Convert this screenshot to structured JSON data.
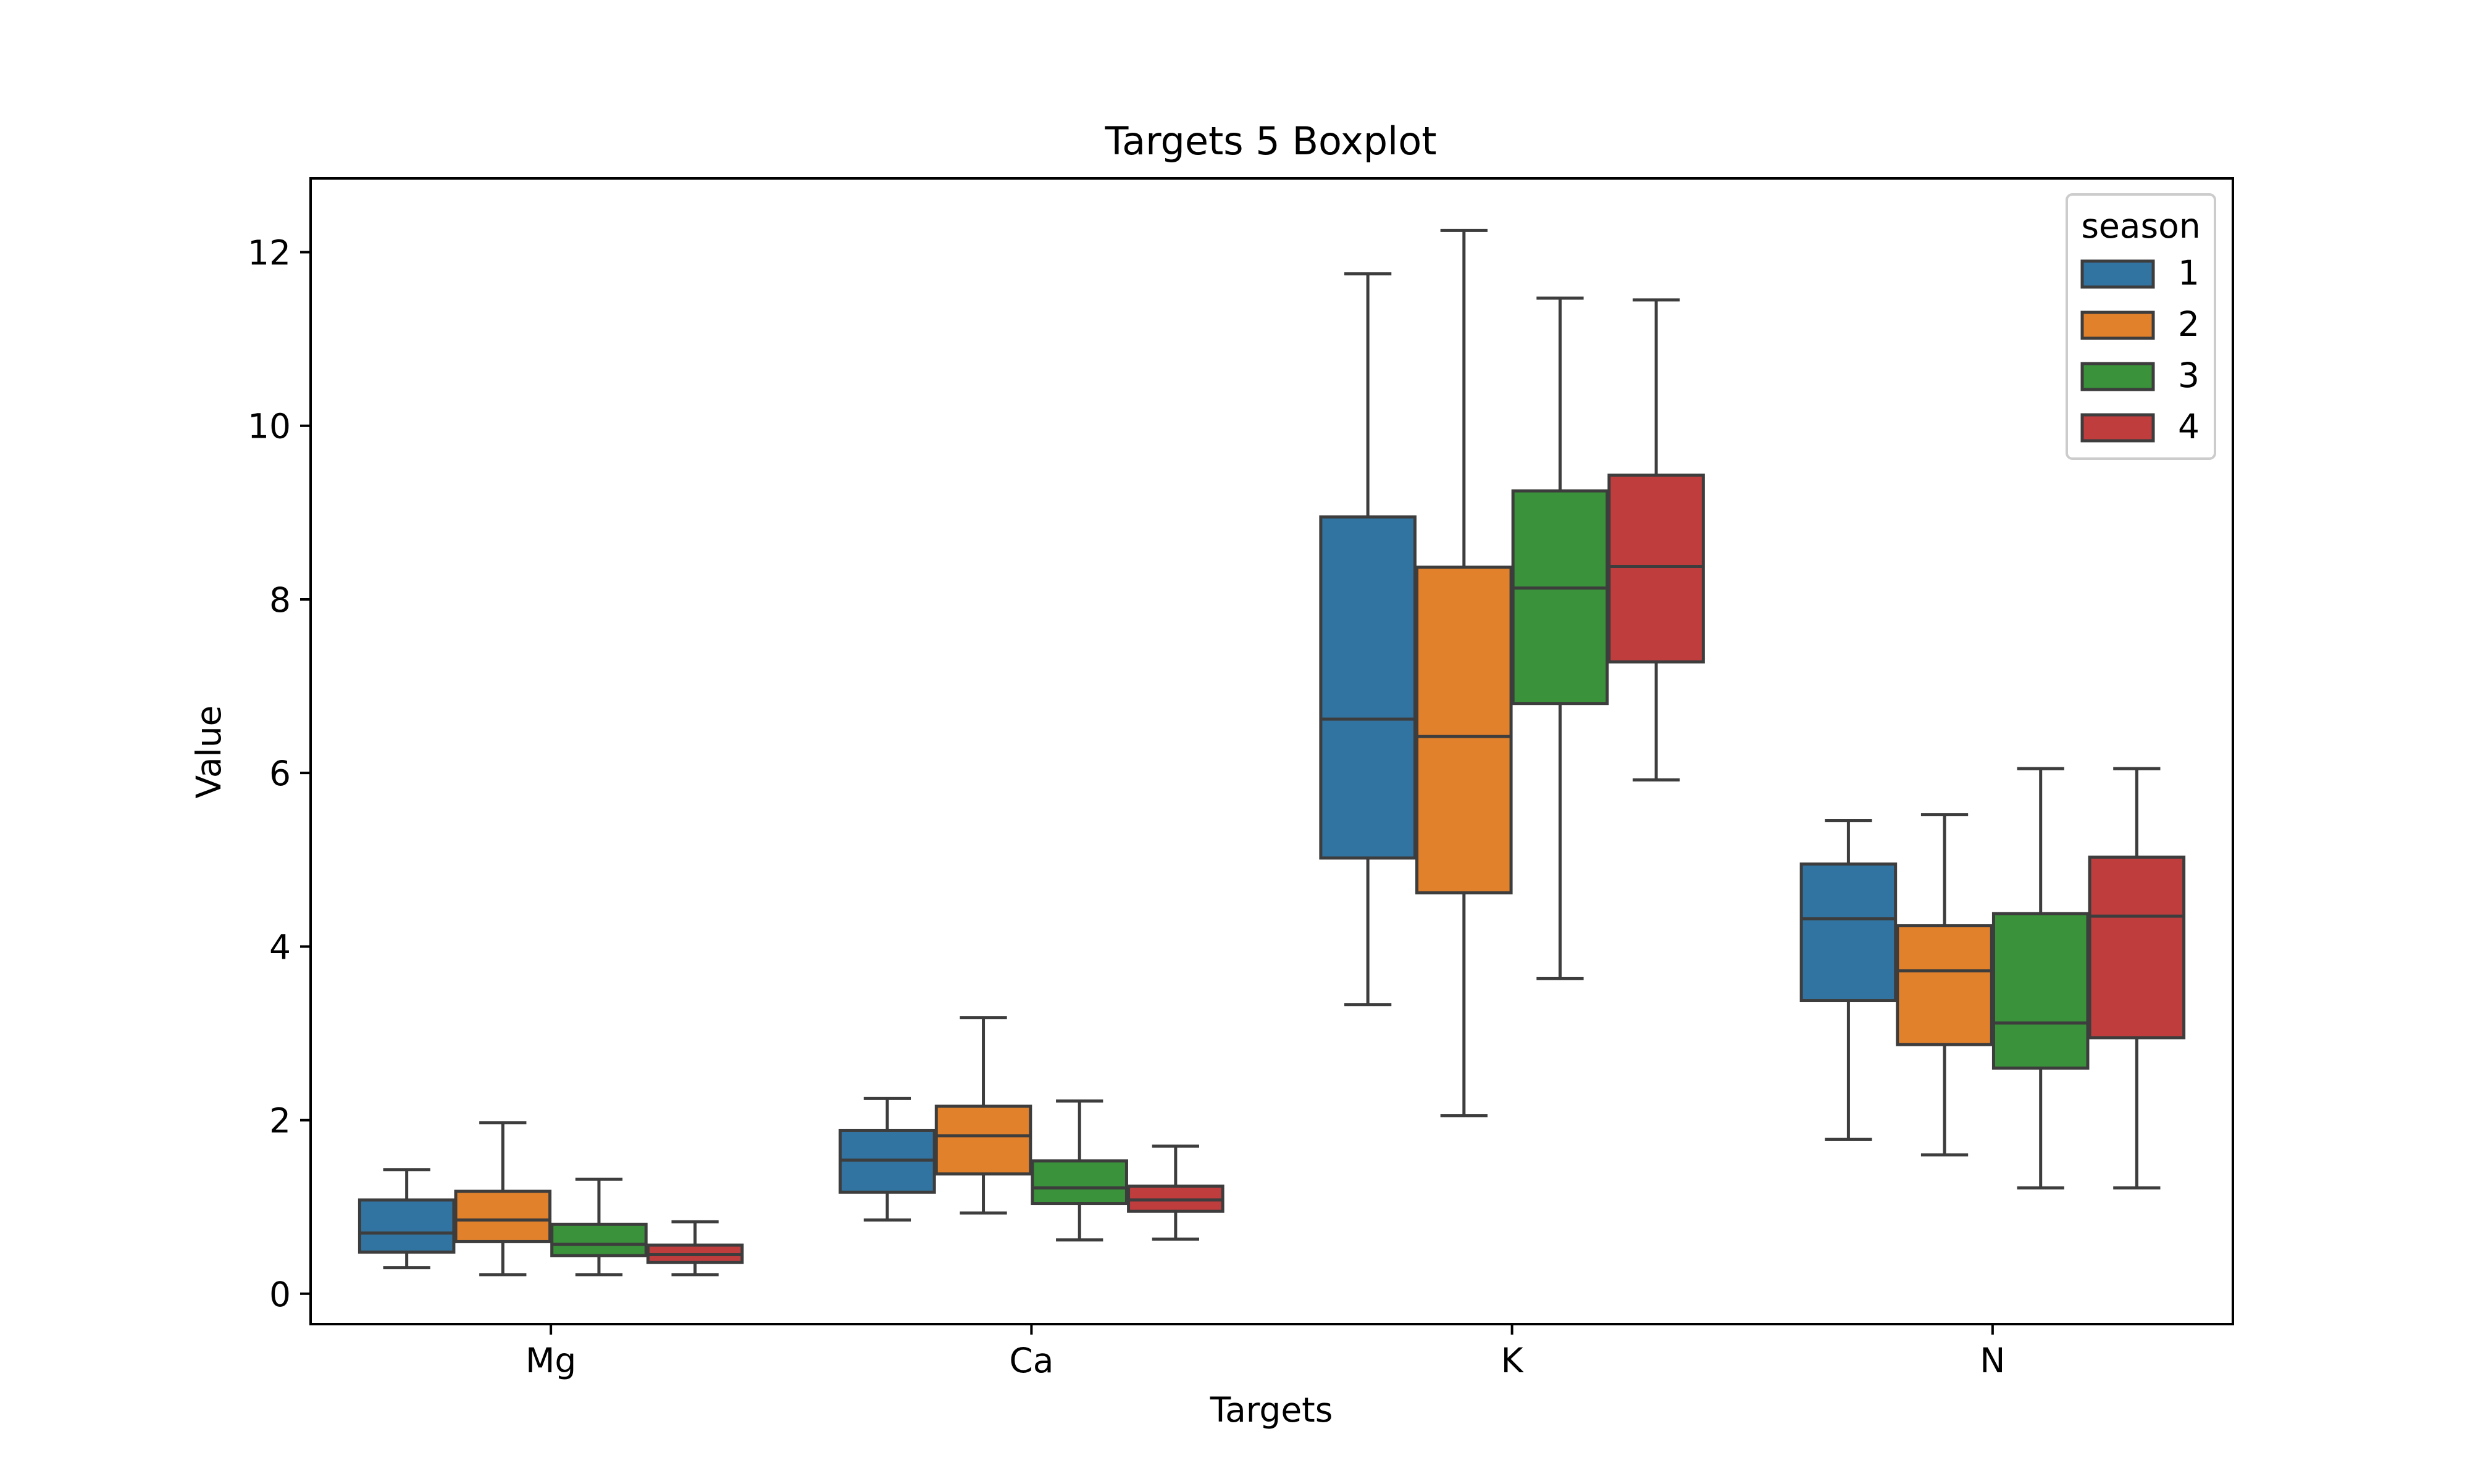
{
  "chart_data": {
    "type": "boxplot",
    "title": "Targets 5 Boxplot",
    "xlabel": "Targets",
    "ylabel": "Value",
    "ylim": [
      -0.35,
      12.85
    ],
    "yticks": [
      0,
      2,
      4,
      6,
      8,
      10,
      12
    ],
    "ytick_labels": [
      "0",
      "2",
      "4",
      "6",
      "8",
      "10",
      "12"
    ],
    "categories": [
      "Mg",
      "Ca",
      "K",
      "N"
    ],
    "grid": false,
    "legend": {
      "title": "season",
      "placement": "top-right"
    },
    "series": [
      {
        "name": "1",
        "color": "#3274a1",
        "boxes": [
          {
            "whislo": 0.3,
            "q1": 0.48,
            "med": 0.7,
            "q3": 1.08,
            "whishi": 1.43
          },
          {
            "whislo": 0.85,
            "q1": 1.17,
            "med": 1.54,
            "q3": 1.88,
            "whishi": 2.25
          },
          {
            "whislo": 3.33,
            "q1": 5.02,
            "med": 6.62,
            "q3": 8.95,
            "whishi": 11.75
          },
          {
            "whislo": 1.78,
            "q1": 3.38,
            "med": 4.32,
            "q3": 4.95,
            "whishi": 5.45
          }
        ]
      },
      {
        "name": "2",
        "color": "#e1812c",
        "boxes": [
          {
            "whislo": 0.22,
            "q1": 0.6,
            "med": 0.85,
            "q3": 1.18,
            "whishi": 1.97
          },
          {
            "whislo": 0.93,
            "q1": 1.38,
            "med": 1.82,
            "q3": 2.16,
            "whishi": 3.18
          },
          {
            "whislo": 2.05,
            "q1": 4.62,
            "med": 6.42,
            "q3": 8.37,
            "whishi": 12.25
          },
          {
            "whislo": 1.6,
            "q1": 2.87,
            "med": 3.72,
            "q3": 4.24,
            "whishi": 5.52
          }
        ]
      },
      {
        "name": "3",
        "color": "#3a923a",
        "boxes": [
          {
            "whislo": 0.22,
            "q1": 0.44,
            "med": 0.57,
            "q3": 0.8,
            "whishi": 1.32
          },
          {
            "whislo": 0.62,
            "q1": 1.04,
            "med": 1.22,
            "q3": 1.53,
            "whishi": 2.22
          },
          {
            "whislo": 3.63,
            "q1": 6.8,
            "med": 8.13,
            "q3": 9.25,
            "whishi": 11.47
          },
          {
            "whislo": 1.22,
            "q1": 2.6,
            "med": 3.12,
            "q3": 4.38,
            "whishi": 6.05
          }
        ]
      },
      {
        "name": "4",
        "color": "#c03d3e",
        "boxes": [
          {
            "whislo": 0.22,
            "q1": 0.36,
            "med": 0.45,
            "q3": 0.56,
            "whishi": 0.83
          },
          {
            "whislo": 0.63,
            "q1": 0.95,
            "med": 1.08,
            "q3": 1.24,
            "whishi": 1.7
          },
          {
            "whislo": 5.92,
            "q1": 7.28,
            "med": 8.38,
            "q3": 9.43,
            "whishi": 11.45
          },
          {
            "whislo": 1.22,
            "q1": 2.95,
            "med": 4.35,
            "q3": 5.03,
            "whishi": 6.05
          }
        ]
      }
    ]
  }
}
